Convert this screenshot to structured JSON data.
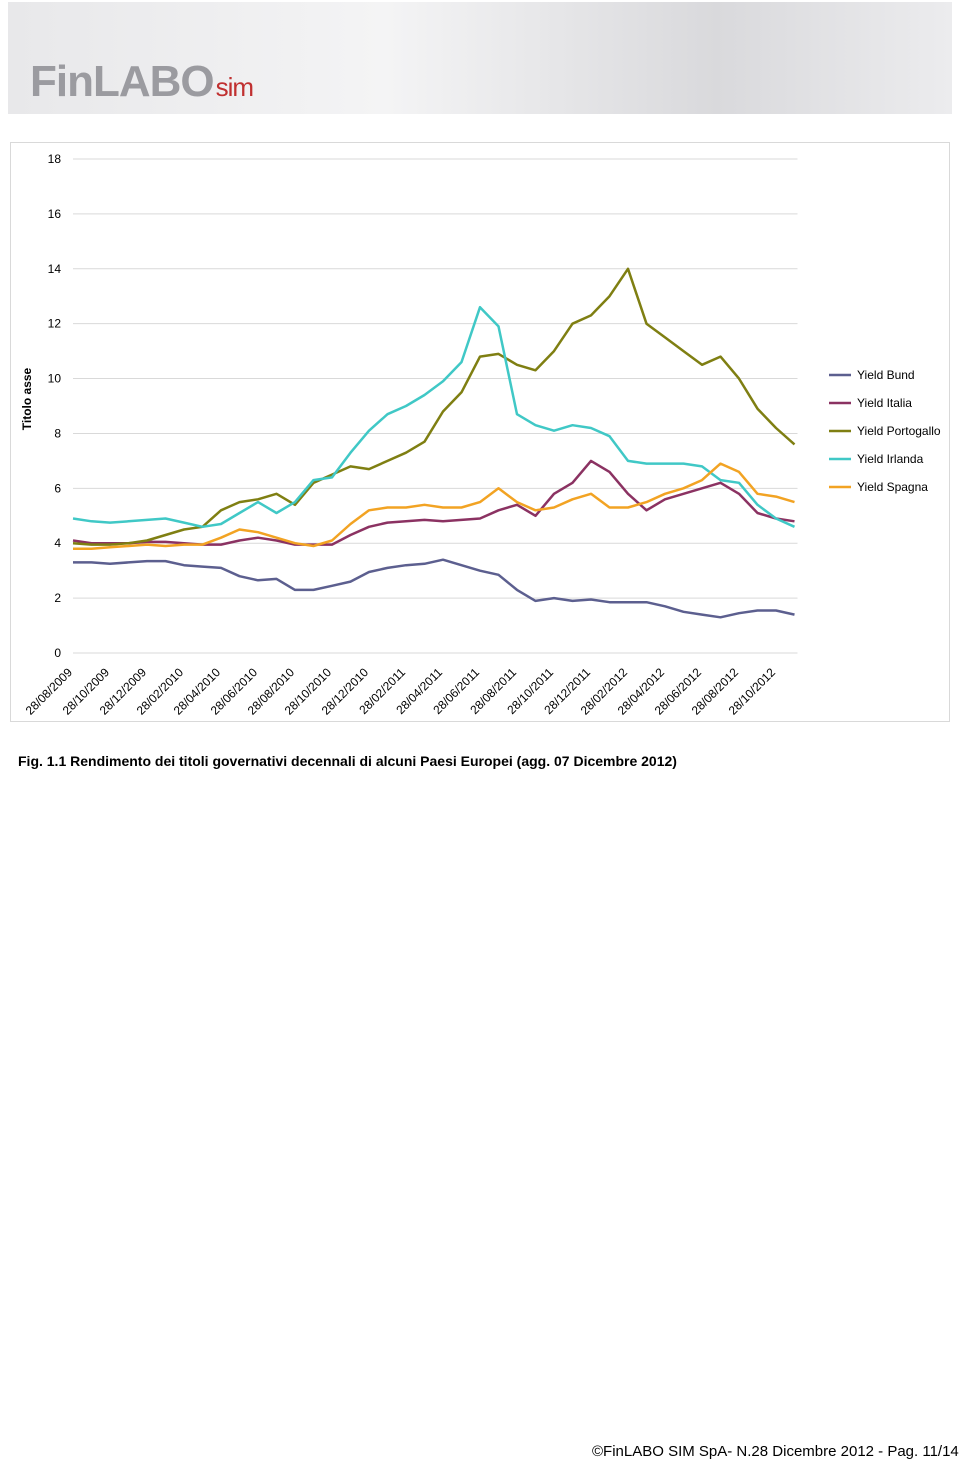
{
  "header": {
    "logo": "FinLABO",
    "logo_suffix": "sim"
  },
  "chart_data": {
    "type": "line",
    "y_label": "Titolo asse",
    "categories": [
      "28/08/2009",
      null,
      "28/10/2009",
      null,
      "28/12/2009",
      null,
      "28/02/2010",
      null,
      "28/04/2010",
      null,
      "28/06/2010",
      null,
      "28/08/2010",
      null,
      "28/10/2010",
      null,
      "28/12/2010",
      null,
      "28/02/2011",
      null,
      "28/04/2011",
      null,
      "28/06/2011",
      null,
      "28/08/2011",
      null,
      "28/10/2011",
      null,
      "28/12/2011",
      null,
      "28/02/2012",
      null,
      "28/04/2012",
      null,
      "28/06/2012",
      null,
      "28/08/2012",
      null,
      "28/10/2012",
      null
    ],
    "series": [
      {
        "name": "Yield Bund",
        "color": "#5c5f8f",
        "values": [
          3.3,
          3.3,
          3.25,
          3.3,
          3.35,
          3.35,
          3.2,
          3.15,
          3.1,
          2.8,
          2.65,
          2.7,
          2.3,
          2.3,
          2.45,
          2.6,
          2.95,
          3.1,
          3.2,
          3.25,
          3.4,
          3.2,
          3.0,
          2.85,
          2.3,
          1.9,
          2.0,
          1.9,
          1.95,
          1.85,
          1.85,
          1.85,
          1.7,
          1.5,
          1.4,
          1.3,
          1.45,
          1.55,
          1.55,
          1.4
        ]
      },
      {
        "name": "Yield Italia",
        "color": "#8b3262",
        "values": [
          4.1,
          4.0,
          4.0,
          4.0,
          4.05,
          4.05,
          4.0,
          3.95,
          3.95,
          4.1,
          4.2,
          4.1,
          3.95,
          3.95,
          3.95,
          4.3,
          4.6,
          4.75,
          4.8,
          4.85,
          4.8,
          4.85,
          4.9,
          5.2,
          5.4,
          5.0,
          5.8,
          6.2,
          7.0,
          6.6,
          5.8,
          5.2,
          5.6,
          5.8,
          6.0,
          6.2,
          5.8,
          5.1,
          4.9,
          4.8
        ]
      },
      {
        "name": "Yield Portogallo",
        "color": "#7f7f12",
        "values": [
          4.0,
          3.95,
          3.95,
          4.0,
          4.1,
          4.3,
          4.5,
          4.6,
          5.2,
          5.5,
          5.6,
          5.8,
          5.4,
          6.2,
          6.5,
          6.8,
          6.7,
          7.0,
          7.3,
          7.7,
          8.8,
          9.5,
          10.8,
          10.9,
          10.5,
          10.3,
          11.0,
          12.0,
          12.3,
          13.0,
          14.0,
          12.0,
          11.5,
          11.0,
          10.5,
          10.8,
          10.0,
          8.9,
          8.2,
          7.6
        ]
      },
      {
        "name": "Yield Irlanda",
        "color": "#40c8c6",
        "values": [
          4.9,
          4.8,
          4.75,
          4.8,
          4.85,
          4.9,
          4.75,
          4.6,
          4.7,
          5.1,
          5.5,
          5.1,
          5.5,
          6.3,
          6.4,
          7.3,
          8.1,
          8.7,
          9.0,
          9.4,
          9.9,
          10.6,
          12.6,
          11.9,
          8.7,
          8.3,
          8.1,
          8.3,
          8.2,
          7.9,
          7.0,
          6.9,
          6.9,
          6.9,
          6.8,
          6.3,
          6.2,
          5.4,
          4.9,
          4.6
        ]
      },
      {
        "name": "Yield Spagna",
        "color": "#f2a323",
        "values": [
          3.8,
          3.8,
          3.85,
          3.9,
          3.95,
          3.9,
          3.95,
          3.95,
          4.2,
          4.5,
          4.4,
          4.2,
          4.0,
          3.9,
          4.1,
          4.7,
          5.2,
          5.3,
          5.3,
          5.4,
          5.3,
          5.3,
          5.5,
          6.0,
          5.5,
          5.2,
          5.3,
          5.6,
          5.8,
          5.3,
          5.3,
          5.5,
          5.8,
          6.0,
          6.3,
          6.9,
          6.6,
          5.8,
          5.7,
          5.5
        ]
      }
    ],
    "ylim": [
      0,
      18
    ],
    "yticks": [
      0,
      2,
      4,
      6,
      8,
      10,
      12,
      14,
      16,
      18
    ],
    "grid": true,
    "legend": "right"
  },
  "caption": "Fig. 1.1 Rendimento dei titoli governativi decennali di alcuni Paesi Europei (agg. 07 Dicembre 2012)",
  "footer": "©FinLABO SIM SpA- N.28 Dicembre 2012 - Pag. 11/14"
}
